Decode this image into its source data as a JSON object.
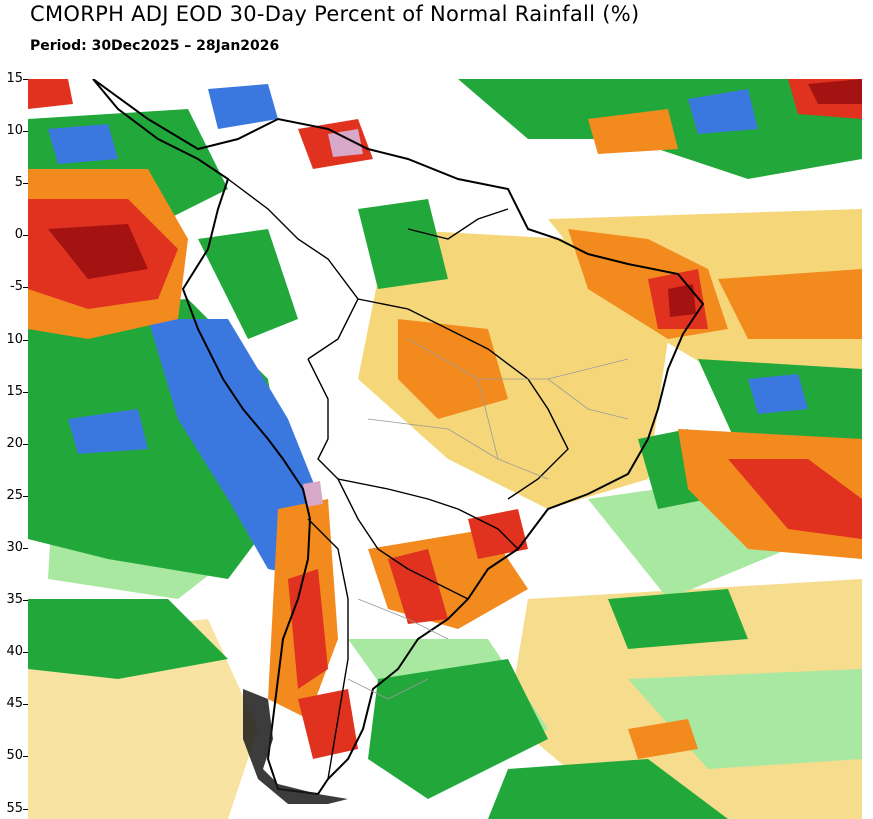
{
  "title": "CMORPH ADJ EOD 30-Day Percent of Normal Rainfall (%)",
  "period": "Period: 30Dec2025 – 28Jan2026",
  "map": {
    "lat_range": [
      15,
      -56
    ],
    "lat_ticks": [
      15,
      10,
      5,
      0,
      -5,
      10,
      15,
      20,
      25,
      30,
      35,
      40,
      45,
      50,
      55
    ],
    "lat_tick_values": [
      15,
      10,
      5,
      0,
      -5,
      -10,
      -15,
      -20,
      -25,
      -30,
      -35,
      -40,
      -45,
      -50,
      -55
    ],
    "colors": {
      "very_dry": "#a51212",
      "dry_red": "#e0321e",
      "dry_orange": "#f28a1e",
      "dry_light": "#f5d77a",
      "near_normal": "#ffffff",
      "wet_light": "#a8e8a0",
      "wet_green": "#22a83a",
      "very_wet_blue": "#3a78e0",
      "extreme_wet": "#d8a8c8"
    }
  }
}
